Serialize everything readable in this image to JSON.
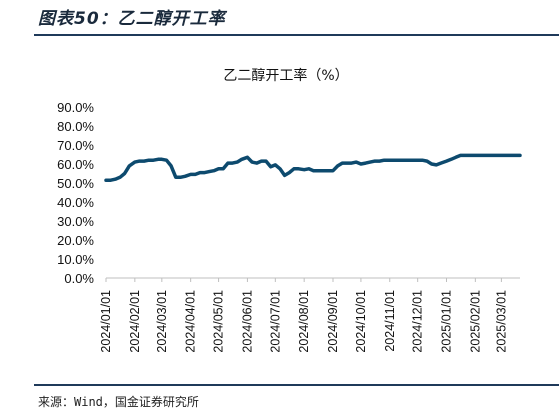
{
  "figure": {
    "title": "图表50：乙二醇开工率",
    "source": "来源：Wind，国金证券研究所"
  },
  "chart_data": {
    "type": "line",
    "title": "乙二醇开工率（%）",
    "xlabel": "",
    "ylabel": "",
    "ylim": [
      0,
      90
    ],
    "ytick_step": 10,
    "ytick_labels": [
      "0.0%",
      "10.0%",
      "20.0%",
      "30.0%",
      "40.0%",
      "50.0%",
      "60.0%",
      "70.0%",
      "80.0%",
      "90.0%"
    ],
    "xtick_labels": [
      "2024/01/01",
      "2024/02/01",
      "2024/03/01",
      "2024/04/01",
      "2024/05/01",
      "2024/06/01",
      "2024/07/01",
      "2024/08/01",
      "2024/09/01",
      "2024/10/01",
      "2024/11/01",
      "2024/12/01",
      "2025/01/01",
      "2025/02/01",
      "2025/03/01"
    ],
    "grid": false,
    "legend": "none",
    "color": "#0d4a6e",
    "series": [
      {
        "x": [
          "2024/01/01",
          "2024/01/06",
          "2024/01/11",
          "2024/01/16",
          "2024/01/21",
          "2024/01/26",
          "2024/02/01",
          "2024/02/06",
          "2024/02/11",
          "2024/02/16",
          "2024/02/21",
          "2024/02/26",
          "2024/03/01",
          "2024/03/06",
          "2024/03/11",
          "2024/03/16",
          "2024/03/21",
          "2024/03/26",
          "2024/04/01",
          "2024/04/06",
          "2024/04/11",
          "2024/04/16",
          "2024/04/21",
          "2024/04/26",
          "2024/05/01",
          "2024/05/06",
          "2024/05/11",
          "2024/05/16",
          "2024/05/21",
          "2024/05/26",
          "2024/06/01",
          "2024/06/06",
          "2024/06/11",
          "2024/06/16",
          "2024/06/21",
          "2024/06/26",
          "2024/07/01",
          "2024/07/06",
          "2024/07/11",
          "2024/07/16",
          "2024/07/21",
          "2024/07/26",
          "2024/08/01",
          "2024/08/06",
          "2024/08/11",
          "2024/08/16",
          "2024/08/21",
          "2024/08/26",
          "2024/09/01",
          "2024/09/06",
          "2024/09/11",
          "2024/09/16",
          "2024/09/21",
          "2024/09/26",
          "2024/10/01",
          "2024/10/06",
          "2024/10/11",
          "2024/10/16",
          "2024/10/21",
          "2024/10/26",
          "2024/11/01",
          "2024/11/06",
          "2024/11/11",
          "2024/11/16",
          "2024/11/21",
          "2024/11/26",
          "2024/12/01",
          "2024/12/06",
          "2024/12/11",
          "2024/12/16",
          "2024/12/21",
          "2024/12/26",
          "2025/01/01",
          "2025/01/06",
          "2025/01/11",
          "2025/01/16",
          "2025/01/21",
          "2025/01/26",
          "2025/02/01",
          "2025/02/06",
          "2025/02/11",
          "2025/02/16",
          "2025/02/21",
          "2025/02/26",
          "2025/03/01",
          "2025/03/06",
          "2025/03/11",
          "2025/03/16",
          "2025/03/21"
        ],
        "values": [
          51.5,
          51.5,
          52,
          53,
          55,
          59,
          61,
          61.5,
          61.5,
          62,
          62,
          62.5,
          62.5,
          62,
          59,
          53,
          53,
          53.5,
          54.5,
          54.5,
          55.5,
          55.5,
          56,
          56.5,
          57.5,
          57.5,
          60.5,
          60.5,
          61,
          62.5,
          63.5,
          61,
          60.5,
          61.5,
          61.5,
          58.5,
          59.5,
          57.5,
          54,
          55.5,
          57.5,
          57.5,
          57,
          57.5,
          56.5,
          56.5,
          56.5,
          56.5,
          56.5,
          59,
          60.5,
          60.5,
          60.5,
          61,
          60,
          60.5,
          61,
          61.5,
          61.5,
          62,
          62,
          62,
          62,
          62,
          62,
          62,
          62,
          62,
          61.5,
          60,
          59.5,
          60.5,
          61.5,
          62.5,
          63.5,
          64.5,
          64.5,
          64.5,
          64.5,
          64.5,
          64.5,
          64.5,
          64.5,
          64.5,
          64.5,
          64.5,
          64.5,
          64.5,
          64.5
        ]
      }
    ]
  }
}
